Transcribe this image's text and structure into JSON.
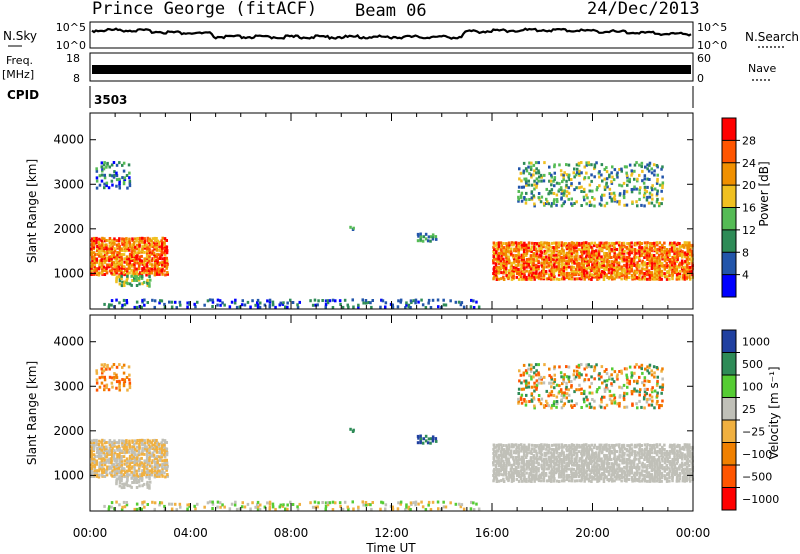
{
  "header": {
    "station": "Prince George (fitACF)",
    "beam": "Beam 06",
    "date": "24/Dec/2013"
  },
  "noise_panel": {
    "left_label": "N.Sky",
    "right_label": "N.Search",
    "ticks": [
      "10^5",
      "10^0"
    ],
    "right_ticks": [
      "10^5",
      "10^0"
    ]
  },
  "freq_panel": {
    "left_label_1": "Freq.",
    "left_label_2": "[MHz]",
    "left_ticks": [
      "18",
      "8"
    ],
    "right_label": "Nave",
    "right_ticks": [
      "60",
      "0"
    ]
  },
  "cpid_panel": {
    "label": "CPID",
    "value": "3503"
  },
  "colors": {
    "power": [
      "#0000ff",
      "#2255aa",
      "#2e8b57",
      "#55bb55",
      "#f0c020",
      "#f09000",
      "#ff5500",
      "#ff0000"
    ],
    "velocity": [
      "#ff0000",
      "#ff5500",
      "#f08000",
      "#f0b040",
      "#c0c0b8",
      "#55cc33",
      "#2e8b57",
      "#2040a0"
    ],
    "noise_trace": "#000000"
  },
  "chart_data": [
    {
      "type": "heatmap",
      "name_in_figure": "power",
      "ylabel": "Slant Range [km]",
      "ylim": [
        200,
        4600
      ],
      "yticks": [
        1000,
        2000,
        3000,
        4000
      ],
      "xlim": [
        0,
        24
      ],
      "colorbar": {
        "label": "Power [dB]",
        "range": [
          0,
          32
        ],
        "ticks": [
          "4",
          "8",
          "12",
          "16",
          "20",
          "24",
          "28"
        ]
      }
    },
    {
      "type": "heatmap",
      "name_in_figure": "velocity",
      "ylabel": "Slant Range [km]",
      "ylim": [
        200,
        4600
      ],
      "yticks": [
        1000,
        2000,
        3000,
        4000
      ],
      "xlim": [
        0,
        24
      ],
      "colorbar": {
        "label": "Velocity [m s⁻¹]",
        "ticks": [
          "1000",
          "500",
          "100",
          "25",
          "−25",
          "−100",
          "−500",
          "−1000"
        ]
      }
    }
  ],
  "xaxis": {
    "label": "Time UT",
    "ticks": [
      "00:00",
      "04:00",
      "08:00",
      "12:00",
      "16:00",
      "20:00",
      "00:00"
    ]
  }
}
